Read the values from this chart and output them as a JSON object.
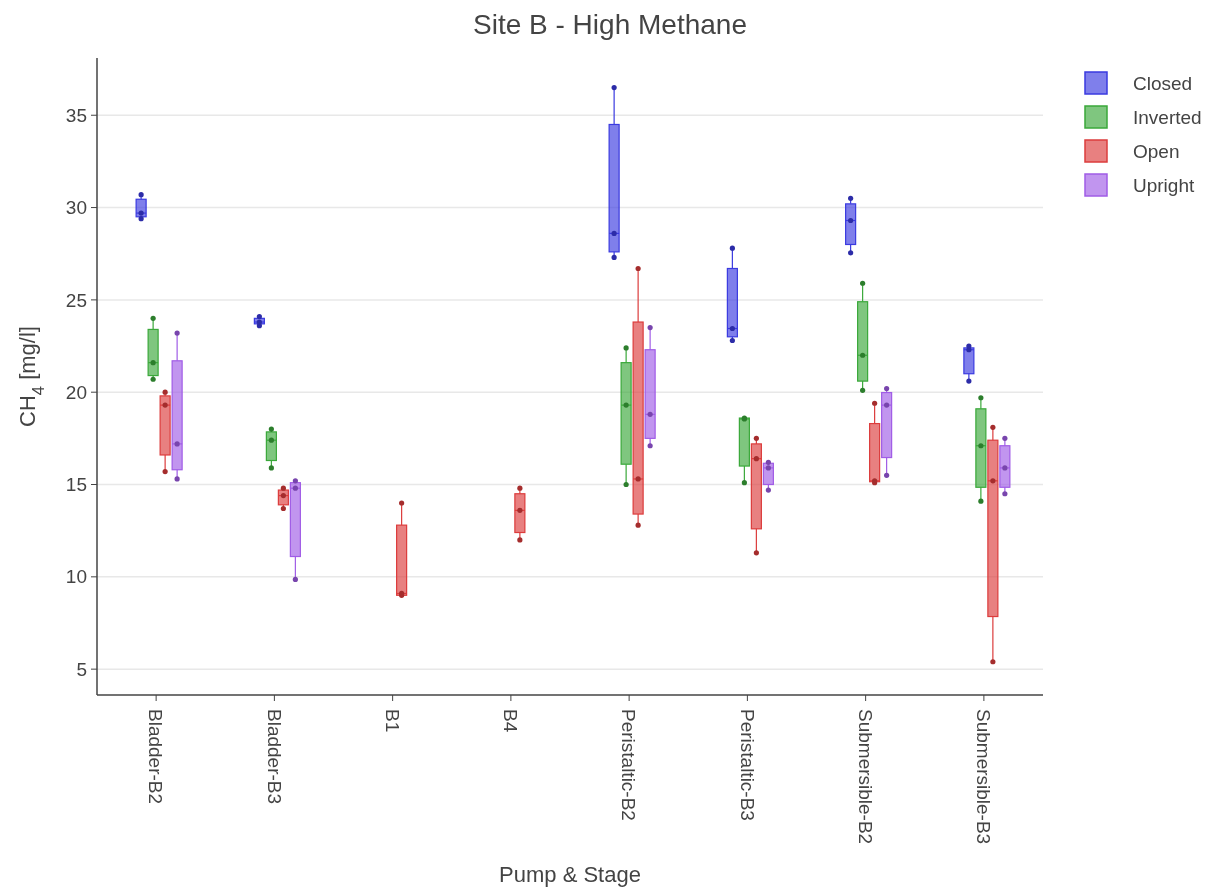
{
  "chart_data": {
    "type": "box",
    "title": "Site B - High Methane",
    "xlabel": "Pump & Stage",
    "ylabel": "CH$_{4}$ [mg/l]",
    "categories": [
      "Bladder-B2",
      "Bladder-B3",
      "B1",
      "B4",
      "Peristaltic-B2",
      "Peristaltic-B3",
      "Submersible-B2",
      "Submersible-B3"
    ],
    "ylim": [
      3.6,
      38.1
    ],
    "yticks": [
      5,
      10,
      15,
      20,
      25,
      30,
      35
    ],
    "grid": "y",
    "legend": "top right",
    "tick_labels": true,
    "series": [
      {
        "name": "Closed",
        "color": "#3a3ae0",
        "boxes": [
          {
            "low": 29.4,
            "q1": 29.5,
            "median": 29.7,
            "q3": 30.45,
            "high": 30.7
          },
          {
            "low": 23.6,
            "q1": 23.7,
            "median": 23.8,
            "q3": 24.0,
            "high": 24.1
          },
          null,
          null,
          {
            "low": 27.3,
            "q1": 27.6,
            "median": 28.6,
            "q3": 34.5,
            "high": 36.5
          },
          {
            "low": 22.8,
            "q1": 23.0,
            "median": 23.45,
            "q3": 26.7,
            "high": 27.8
          },
          {
            "low": 27.55,
            "q1": 28.0,
            "median": 29.3,
            "q3": 30.2,
            "high": 30.5
          },
          {
            "low": 20.6,
            "q1": 21.0,
            "median": 22.3,
            "q3": 22.4,
            "high": 22.5
          }
        ]
      },
      {
        "name": "Inverted",
        "color": "#3aa83a",
        "boxes": [
          {
            "low": 20.7,
            "q1": 20.9,
            "median": 21.6,
            "q3": 23.4,
            "high": 24.0
          },
          {
            "low": 15.9,
            "q1": 16.3,
            "median": 17.4,
            "q3": 17.85,
            "high": 18.0
          },
          null,
          null,
          {
            "low": 15.0,
            "q1": 16.1,
            "median": 19.3,
            "q3": 21.6,
            "high": 22.4
          },
          {
            "low": 15.1,
            "q1": 16.0,
            "median": 18.55,
            "q3": 18.6,
            "high": 18.6
          },
          {
            "low": 20.1,
            "q1": 20.6,
            "median": 22.0,
            "q3": 24.9,
            "high": 25.9
          },
          {
            "low": 14.1,
            "q1": 14.85,
            "median": 17.1,
            "q3": 19.1,
            "high": 19.7
          }
        ]
      },
      {
        "name": "Open",
        "color": "#dc3c3c",
        "boxes": [
          {
            "low": 15.7,
            "q1": 16.6,
            "median": 19.3,
            "q3": 19.8,
            "high": 20.0
          },
          {
            "low": 13.7,
            "q1": 13.9,
            "median": 14.4,
            "q3": 14.7,
            "high": 14.8
          },
          {
            "low": 9.0,
            "q1": 9.0,
            "median": 9.1,
            "q3": 12.8,
            "high": 14.0
          },
          {
            "low": 12.0,
            "q1": 12.4,
            "median": 13.6,
            "q3": 14.5,
            "high": 14.8
          },
          {
            "low": 12.8,
            "q1": 13.4,
            "median": 15.3,
            "q3": 23.8,
            "high": 26.7
          },
          {
            "low": 11.3,
            "q1": 12.6,
            "median": 16.4,
            "q3": 17.2,
            "high": 17.5
          },
          {
            "low": 15.1,
            "q1": 15.15,
            "median": 15.2,
            "q3": 18.3,
            "high": 19.4
          },
          {
            "low": 5.4,
            "q1": 7.85,
            "median": 15.2,
            "q3": 17.4,
            "high": 18.1
          }
        ]
      },
      {
        "name": "Upright",
        "color": "#a05ce6",
        "boxes": [
          {
            "low": 15.3,
            "q1": 15.8,
            "median": 17.2,
            "q3": 21.7,
            "high": 23.2
          },
          {
            "low": 9.86,
            "q1": 11.1,
            "median": 14.8,
            "q3": 15.1,
            "high": 15.2
          },
          null,
          null,
          {
            "low": 17.1,
            "q1": 17.5,
            "median": 18.8,
            "q3": 22.3,
            "high": 23.5
          },
          {
            "low": 14.7,
            "q1": 15.0,
            "median": 15.9,
            "q3": 16.15,
            "high": 16.2
          },
          {
            "low": 15.5,
            "q1": 16.46,
            "median": 19.3,
            "q3": 19.98,
            "high": 20.2
          },
          {
            "low": 14.5,
            "q1": 14.85,
            "median": 15.9,
            "q3": 17.1,
            "high": 17.5
          }
        ]
      }
    ]
  }
}
